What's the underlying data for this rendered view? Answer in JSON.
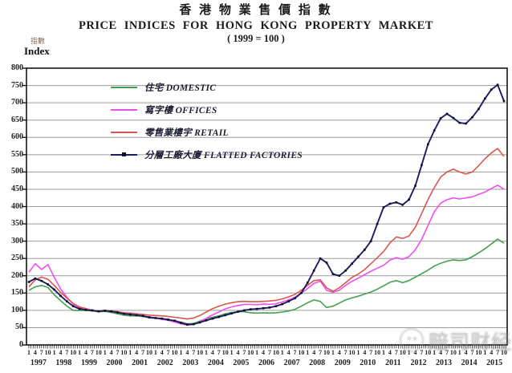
{
  "title": {
    "chinese": "香 港 物 業 售 價 指 數",
    "english": "PRICE INDICES FOR HONG KONG PROPERTY MARKET",
    "base": "( 1999 = 100 )"
  },
  "y_axis": {
    "label_chinese": "指數",
    "label_english": "Index",
    "min": 0,
    "max": 800,
    "step": 50
  },
  "x_axis": {
    "start_year": 1997,
    "end_year": 2015,
    "month_ticks": [
      "1",
      "4",
      "7",
      "10"
    ]
  },
  "legend": [
    {
      "chinese": "住宅",
      "english": "DOMESTIC",
      "color": "#44a04c",
      "marker": false
    },
    {
      "chinese": "寫字樓",
      "english": "OFFICES",
      "color": "#ee4fee",
      "marker": false
    },
    {
      "chinese": "零售業樓宇",
      "english": "RETAIL",
      "color": "#d8574f",
      "marker": false
    },
    {
      "chinese": "分層工廠大廈",
      "english": "FLATTED FACTORIES",
      "color": "#1b1b66",
      "marker": true
    }
  ],
  "watermark": {
    "text": "赔司财经"
  },
  "chart_data": {
    "type": "line",
    "title": "PRICE INDICES FOR HONG KONG PROPERTY MARKET (1999 = 100)",
    "ylabel": "Index",
    "ylim": [
      0,
      800
    ],
    "y_gridline_step": 50,
    "x_unit": "quarter (months 1,4,7,10 of each year)",
    "x_range": "1997 Q1 - 2015 Q4",
    "legend_position": "top-left inside plot",
    "grid": true,
    "series": [
      {
        "name": "住宅 DOMESTIC",
        "color": "#44a04c",
        "markers": false,
        "values": [
          158,
          168,
          172,
          166,
          145,
          128,
          112,
          100,
          100,
          100,
          98,
          96,
          97,
          94,
          90,
          86,
          84,
          84,
          82,
          78,
          77,
          76,
          73,
          70,
          66,
          61,
          62,
          69,
          76,
          80,
          84,
          90,
          94,
          96,
          96,
          93,
          92,
          93,
          92,
          93,
          95,
          98,
          103,
          112,
          122,
          130,
          126,
          108,
          112,
          121,
          130,
          136,
          141,
          147,
          153,
          161,
          171,
          181,
          186,
          180,
          186,
          196,
          206,
          216,
          228,
          236,
          242,
          246,
          244,
          246,
          255,
          266,
          278,
          292,
          306,
          294
        ]
      },
      {
        "name": "寫字樓 OFFICES",
        "color": "#ee4fee",
        "markers": false,
        "values": [
          210,
          235,
          218,
          232,
          196,
          162,
          138,
          118,
          108,
          103,
          100,
          97,
          100,
          97,
          94,
          90,
          88,
          86,
          83,
          79,
          77,
          74,
          71,
          66,
          61,
          57,
          59,
          67,
          77,
          87,
          95,
          104,
          110,
          114,
          117,
          117,
          116,
          118,
          117,
          119,
          124,
          130,
          138,
          150,
          163,
          178,
          184,
          158,
          152,
          158,
          172,
          184,
          193,
          203,
          213,
          222,
          230,
          245,
          252,
          248,
          255,
          275,
          305,
          345,
          385,
          410,
          420,
          425,
          422,
          425,
          428,
          435,
          442,
          452,
          462,
          450
        ]
      },
      {
        "name": "零售業樓宇 RETAIL",
        "color": "#d8574f",
        "markers": false,
        "values": [
          168,
          188,
          196,
          190,
          172,
          152,
          135,
          120,
          110,
          105,
          100,
          98,
          100,
          98,
          96,
          93,
          92,
          90,
          88,
          86,
          85,
          84,
          82,
          80,
          78,
          75,
          78,
          85,
          95,
          105,
          112,
          118,
          122,
          125,
          126,
          125,
          125,
          126,
          127,
          129,
          133,
          139,
          146,
          158,
          172,
          186,
          188,
          165,
          155,
          165,
          180,
          195,
          205,
          218,
          235,
          252,
          270,
          295,
          312,
          308,
          315,
          340,
          380,
          420,
          455,
          485,
          500,
          508,
          500,
          494,
          500,
          518,
          538,
          555,
          568,
          545
        ]
      },
      {
        "name": "分層工廠大廈 FLATTED FACTORIES",
        "color": "#1b1b66",
        "markers": true,
        "values": [
          182,
          192,
          185,
          175,
          160,
          142,
          126,
          112,
          104,
          101,
          100,
          97,
          99,
          97,
          94,
          90,
          88,
          86,
          84,
          80,
          78,
          76,
          73,
          70,
          64,
          59,
          60,
          65,
          71,
          76,
          81,
          86,
          91,
          96,
          100,
          103,
          104,
          106,
          108,
          112,
          118,
          126,
          135,
          150,
          180,
          215,
          250,
          238,
          205,
          200,
          215,
          235,
          255,
          275,
          300,
          350,
          398,
          408,
          412,
          405,
          420,
          460,
          520,
          580,
          620,
          655,
          668,
          656,
          642,
          640,
          658,
          682,
          712,
          738,
          752,
          705
        ]
      }
    ]
  }
}
